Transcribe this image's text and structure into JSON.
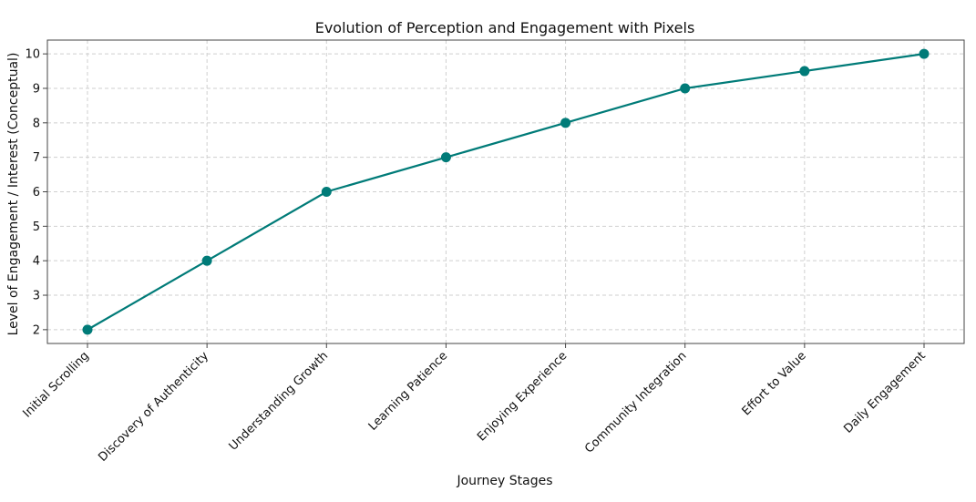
{
  "chart_data": {
    "type": "line",
    "title": "Evolution of Perception and Engagement with Pixels",
    "xlabel": "Journey Stages",
    "ylabel": "Level of Engagement / Interest (Conceptual)",
    "categories": [
      "Initial Scrolling",
      "Discovery of Authenticity",
      "Understanding Growth",
      "Learning Patience",
      "Enjoying Experience",
      "Community Integration",
      "Effort to Value",
      "Daily Engagement"
    ],
    "series": [
      {
        "values": [
          2,
          4,
          6,
          7,
          8,
          9,
          9.5,
          10
        ],
        "color": "#007b78"
      }
    ],
    "ylim": [
      1.6,
      10.4
    ],
    "yticks": [
      2,
      3,
      4,
      5,
      6,
      7,
      8,
      9,
      10
    ],
    "grid": true,
    "markers": "circle"
  }
}
